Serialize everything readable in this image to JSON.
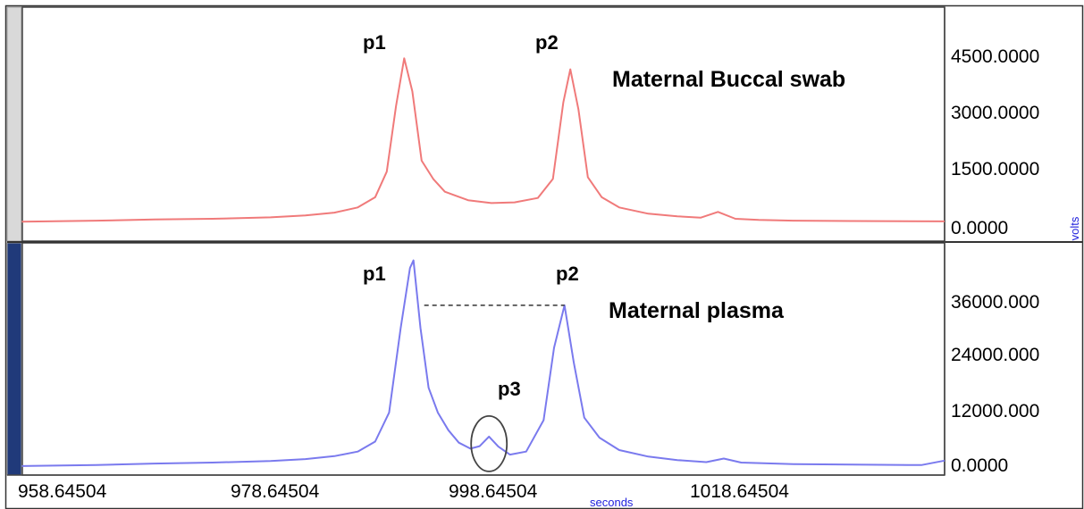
{
  "chart_data": [
    {
      "type": "line",
      "title": "Maternal Buccal swab",
      "xlabel": "seconds",
      "ylabel": "volts",
      "xlim": [
        958.64504,
        1038.0
      ],
      "ylim": [
        -500,
        5900
      ],
      "yticks": [
        "4500.0000",
        "3000.0000",
        "1500.0000",
        "0.0000"
      ],
      "ytick_values": [
        4500,
        3000,
        1500,
        0
      ],
      "color": "#f07a7a",
      "peaks": [
        {
          "label": "p1",
          "x": 991.5,
          "y": 4500
        },
        {
          "label": "p2",
          "x": 1005.8,
          "y": 4200
        }
      ],
      "x": [
        958.6,
        965.0,
        970.0,
        975.0,
        980.0,
        983.0,
        985.5,
        987.5,
        989.0,
        990.0,
        990.8,
        991.5,
        992.2,
        993.0,
        994.0,
        995.0,
        997.0,
        999.0,
        1001.0,
        1003.0,
        1004.3,
        1005.2,
        1005.8,
        1006.5,
        1007.3,
        1008.5,
        1010.0,
        1012.5,
        1015.0,
        1017.0,
        1018.5,
        1020.0,
        1022.0,
        1025.0,
        1030.0,
        1038.0
      ],
      "y": [
        30,
        60,
        90,
        110,
        150,
        200,
        280,
        420,
        700,
        1400,
        3200,
        4500,
        3600,
        1700,
        1200,
        850,
        620,
        540,
        560,
        680,
        1200,
        3300,
        4200,
        3100,
        1250,
        700,
        420,
        250,
        180,
        140,
        300,
        110,
        80,
        60,
        50,
        40
      ]
    },
    {
      "type": "line",
      "title": "Maternal plasma",
      "xlabel": "seconds",
      "ylabel": "volts",
      "xlim": [
        958.64504,
        1038.0
      ],
      "ylim": [
        -1500,
        45000
      ],
      "yticks": [
        "36000.000",
        "24000.000",
        "12000.000",
        "0.0000"
      ],
      "ytick_values": [
        36000,
        24000,
        12000,
        0
      ],
      "xticks": [
        "958.64504",
        "978.64504",
        "998.64504",
        "1018.64504"
      ],
      "xtick_values": [
        958.64504,
        978.64504,
        998.64504,
        1018.64504
      ],
      "color": "#7a7aee",
      "peaks": [
        {
          "label": "p1",
          "x": 992.3,
          "y": 41500
        },
        {
          "label": "p2",
          "x": 1005.3,
          "y": 32500
        },
        {
          "label": "p3",
          "x": 998.8,
          "y": 6200
        }
      ],
      "x": [
        958.6,
        965.0,
        970.0,
        975.0,
        980.0,
        983.0,
        985.5,
        987.5,
        989.0,
        990.2,
        991.2,
        992.0,
        992.3,
        992.9,
        993.6,
        994.4,
        995.3,
        996.2,
        997.2,
        998.0,
        998.8,
        999.6,
        1000.6,
        1002.0,
        1003.5,
        1004.4,
        1005.3,
        1006.1,
        1007.0,
        1008.3,
        1010.0,
        1012.5,
        1015.0,
        1017.5,
        1019.0,
        1020.5,
        1025.0,
        1030.0,
        1036.0,
        1038.0
      ],
      "y": [
        300,
        500,
        800,
        1000,
        1300,
        1700,
        2300,
        3200,
        5200,
        11000,
        28000,
        40000,
        41500,
        28000,
        16000,
        11000,
        7500,
        5000,
        3800,
        4300,
        6200,
        4200,
        2600,
        3200,
        9500,
        24000,
        32500,
        21000,
        10000,
        6000,
        3500,
        2200,
        1500,
        1100,
        1800,
        1000,
        700,
        600,
        500,
        1400
      ]
    }
  ],
  "annotations": {
    "p1_p2_dashed_line": true,
    "p3_circle": true
  }
}
